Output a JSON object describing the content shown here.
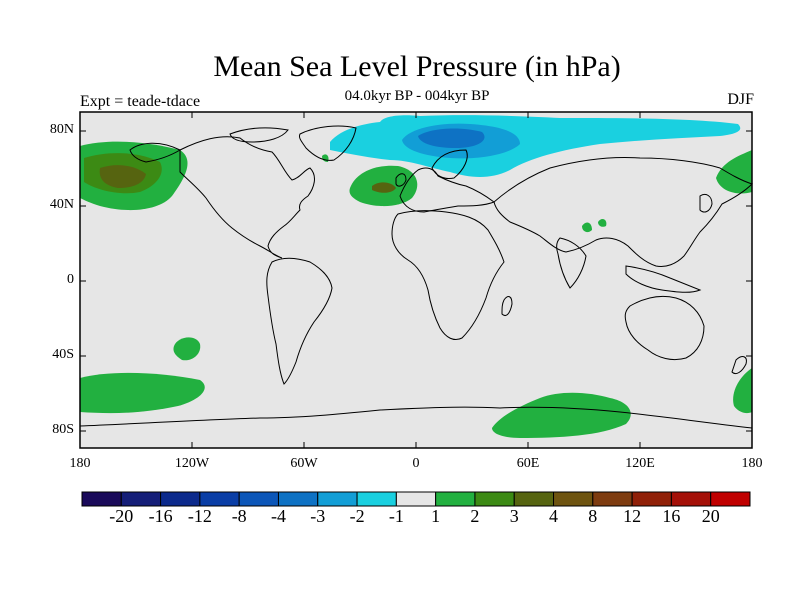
{
  "title": "Mean Sea Level Pressure (in hPa)",
  "subtitle": "04.0kyr BP - 004kyr BP",
  "expt": "Expt = teade-tdace",
  "season": "DJF",
  "lat_labels": [
    "80N",
    "40N",
    "0",
    "40S",
    "80S"
  ],
  "lon_labels": [
    "180",
    "120W",
    "60W",
    "0",
    "60E",
    "120E",
    "180"
  ],
  "colorbar": {
    "colors": [
      "#1a0a5a",
      "#151e78",
      "#0c2a8c",
      "#0a3ea6",
      "#0c56b8",
      "#0e72c4",
      "#129ed6",
      "#1ad0e0",
      "#e6e6e6",
      "#22b040",
      "#3c8a14",
      "#566410",
      "#6e5410",
      "#7e3c10",
      "#902008",
      "#a41008",
      "#c00000"
    ],
    "labels": [
      "-20",
      "-16",
      "-12",
      "-8",
      "-4",
      "-3",
      "-2",
      "-1",
      "1",
      "2",
      "3",
      "4",
      "8",
      "12",
      "16",
      "20"
    ]
  },
  "map_colors": {
    "background": "#e6e6e6",
    "pos1": "#22b040",
    "pos2": "#3c8a14",
    "pos3": "#566410",
    "neg1": "#1ad0e0",
    "neg2": "#129ed6",
    "neg3": "#0e72c4"
  }
}
